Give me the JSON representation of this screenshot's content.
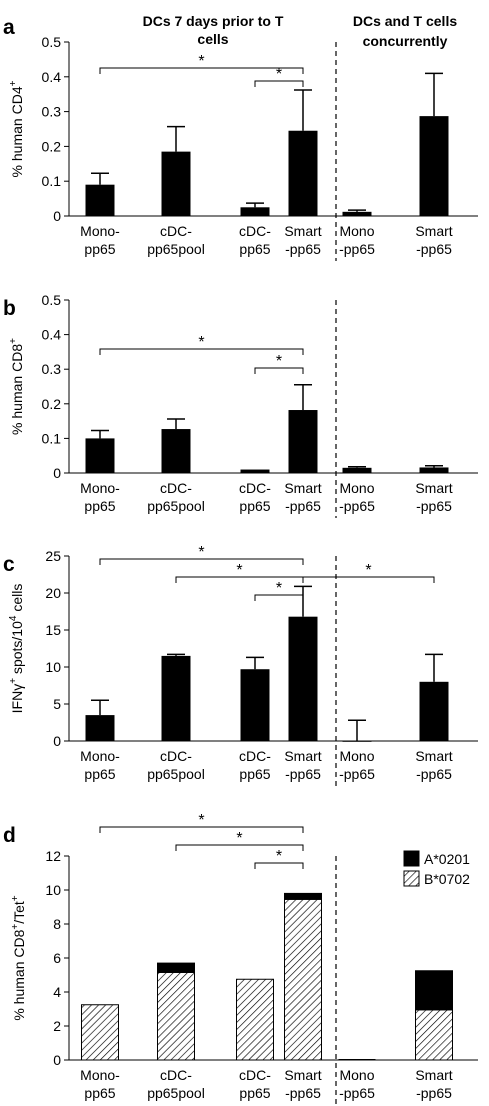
{
  "figure": {
    "section_headers": {
      "left_line1": "DCs  7 days prior to T",
      "left_line2": "cells",
      "right_line1": "DCs and T cells",
      "right_line2": "concurrently"
    },
    "legend": [
      {
        "label": "A*0201",
        "color": "#000000",
        "pattern": "solid"
      },
      {
        "label": "B*0702",
        "color": "#ffffff",
        "pattern": "hatched"
      }
    ],
    "significance_label": "*"
  },
  "chart_data": [
    {
      "panel": "a",
      "type": "bar",
      "ylabel_main": "% human CD4",
      "ylabel_sup": "+",
      "ylim": [
        0,
        0.5
      ],
      "yticks": [
        "0",
        "0.1",
        "0.2",
        "0.3",
        "0.4",
        "0.5"
      ],
      "categories": [
        {
          "line1": "Mono-",
          "line2": "pp65"
        },
        {
          "line1": "cDC-",
          "line2": "pp65pool"
        },
        {
          "line1": "cDC-",
          "line2": "pp65"
        },
        {
          "line1": "Smart",
          "line2": "-pp65"
        },
        {
          "line1": "Mono",
          "line2": "-pp65"
        },
        {
          "line1": "Smart",
          "line2": "-pp65"
        }
      ],
      "values": [
        0.09,
        0.185,
        0.025,
        0.245,
        0.012,
        0.287
      ],
      "errors": [
        0.033,
        0.072,
        0.012,
        0.117,
        0.005,
        0.123
      ],
      "significance": [
        {
          "from": 0,
          "to": 3,
          "label": "*"
        },
        {
          "from": 2,
          "to": 3,
          "label": "*"
        }
      ]
    },
    {
      "panel": "b",
      "type": "bar",
      "ylabel_main": "% human CD8",
      "ylabel_sup": "+",
      "ylim": [
        0,
        0.5
      ],
      "yticks": [
        "0",
        "0.1",
        "0.2",
        "0.3",
        "0.4",
        "0.5"
      ],
      "categories": [
        {
          "line1": "Mono-",
          "line2": "pp65"
        },
        {
          "line1": "cDC-",
          "line2": "pp65pool"
        },
        {
          "line1": "cDC-",
          "line2": "pp65"
        },
        {
          "line1": "Smart",
          "line2": "-pp65"
        },
        {
          "line1": "Mono",
          "line2": "-pp65"
        },
        {
          "line1": "Smart",
          "line2": "-pp65"
        }
      ],
      "values": [
        0.1,
        0.127,
        0.01,
        0.182,
        0.015,
        0.016
      ],
      "errors": [
        0.023,
        0.029,
        0.0,
        0.073,
        0.003,
        0.005
      ],
      "significance": [
        {
          "from": 0,
          "to": 3,
          "label": "*"
        },
        {
          "from": 2,
          "to": 3,
          "label": "*"
        }
      ]
    },
    {
      "panel": "c",
      "type": "bar",
      "ylabel_main": "IFNγ",
      "ylabel_sup": "+",
      "ylabel_mid": " spots/10",
      "ylabel_sup2": "4",
      "ylabel_end": " cells",
      "ylim": [
        0,
        25
      ],
      "yticks": [
        "0",
        "5",
        "10",
        "15",
        "20",
        "25"
      ],
      "categories": [
        {
          "line1": "Mono-",
          "line2": "pp65"
        },
        {
          "line1": "cDC-",
          "line2": "pp65pool"
        },
        {
          "line1": "cDC-",
          "line2": "pp65"
        },
        {
          "line1": "Smart",
          "line2": "-pp65"
        },
        {
          "line1": "Mono",
          "line2": "-pp65"
        },
        {
          "line1": "Smart",
          "line2": "-pp65"
        }
      ],
      "values": [
        3.5,
        11.5,
        9.7,
        16.8,
        0.0,
        8.0
      ],
      "errors": [
        2.0,
        0.2,
        1.6,
        4.1,
        2.8,
        3.7
      ],
      "significance": [
        {
          "from": 0,
          "to": 3,
          "label": "*"
        },
        {
          "from": 1,
          "to": 3,
          "label": "*"
        },
        {
          "from": 2,
          "to": 3,
          "label": "*"
        },
        {
          "from": 3,
          "to": 5,
          "label": "*"
        }
      ]
    },
    {
      "panel": "d",
      "type": "stacked-bar",
      "ylabel_main": "% human CD8",
      "ylabel_sup": "+",
      "ylabel_mid": "/Tet",
      "ylabel_sup2": "+",
      "ylim": [
        0,
        12
      ],
      "yticks": [
        "0",
        "2",
        "4",
        "6",
        "8",
        "10",
        "12"
      ],
      "categories": [
        {
          "line1": "Mono-",
          "line2": "pp65"
        },
        {
          "line1": "cDC-",
          "line2": "pp65pool"
        },
        {
          "line1": "cDC-",
          "line2": "pp65"
        },
        {
          "line1": "Smart",
          "line2": "-pp65"
        },
        {
          "line1": "Mono",
          "line2": "-pp65"
        },
        {
          "line1": "Smart",
          "line2": "-pp65"
        }
      ],
      "series": [
        {
          "name": "B*0702",
          "values": [
            3.25,
            5.15,
            4.75,
            9.45,
            0.02,
            2.95
          ]
        },
        {
          "name": "A*0201",
          "values": [
            0.0,
            0.55,
            0.0,
            0.35,
            0.0,
            2.3
          ]
        }
      ],
      "significance": [
        {
          "from": 0,
          "to": 3,
          "label": "*"
        },
        {
          "from": 1,
          "to": 3,
          "label": "*"
        },
        {
          "from": 2,
          "to": 3,
          "label": "*"
        }
      ]
    }
  ]
}
